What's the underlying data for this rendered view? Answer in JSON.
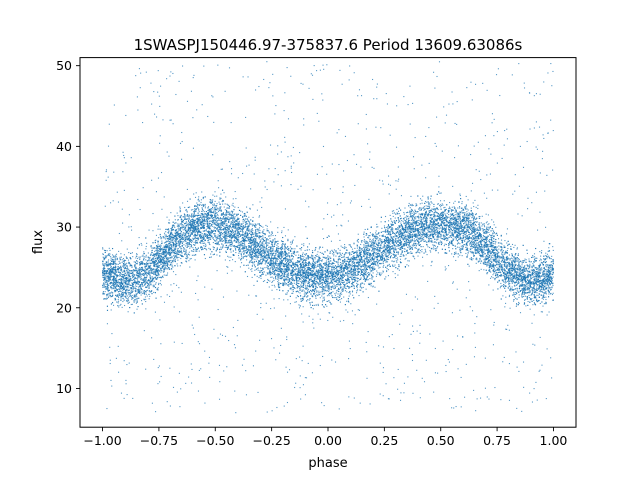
{
  "chart_data": {
    "type": "scatter",
    "title": "1SWASPJ150446.97-375837.6 Period 13609.63086s",
    "xlabel": "phase",
    "ylabel": "flux",
    "xlim": [
      -1.1,
      1.1
    ],
    "ylim": [
      5.2,
      51.0
    ],
    "x_ticks": [
      -1.0,
      -0.75,
      -0.5,
      -0.25,
      0.0,
      0.25,
      0.5,
      0.75,
      1.0
    ],
    "x_tick_labels": [
      "−1.00",
      "−0.75",
      "−0.50",
      "−0.25",
      "0.00",
      "0.25",
      "0.50",
      "0.75",
      "1.00"
    ],
    "y_ticks": [
      10,
      20,
      30,
      40,
      50
    ],
    "y_tick_labels": [
      "10",
      "20",
      "30",
      "40",
      "50"
    ],
    "grid": false,
    "marker_color": "#1f77b4",
    "series": [
      {
        "x": [
          -1.0,
          -0.95,
          -0.9,
          -0.85,
          -0.8,
          -0.75,
          -0.7,
          -0.65,
          -0.6,
          -0.55,
          -0.5,
          -0.45,
          -0.4,
          -0.35,
          -0.3,
          -0.25,
          -0.2,
          -0.15,
          -0.1,
          -0.05,
          0.0,
          0.05,
          0.1,
          0.15,
          0.2,
          0.25,
          0.3,
          0.35,
          0.4,
          0.45,
          0.5,
          0.55,
          0.6,
          0.65,
          0.7,
          0.75,
          0.8,
          0.85,
          0.9,
          0.95,
          1.0
        ],
        "y": [
          24.5,
          23.8,
          23.3,
          23.4,
          24.3,
          25.8,
          27.5,
          28.8,
          29.8,
          30.3,
          30.4,
          30.0,
          29.3,
          28.3,
          27.2,
          26.2,
          25.3,
          24.6,
          24.2,
          23.9,
          23.8,
          24.2,
          24.7,
          25.6,
          26.5,
          27.5,
          28.5,
          29.3,
          29.9,
          30.3,
          30.4,
          30.2,
          29.8,
          28.9,
          27.7,
          26.2,
          24.8,
          23.8,
          23.3,
          23.6,
          24.5
        ]
      }
    ]
  }
}
